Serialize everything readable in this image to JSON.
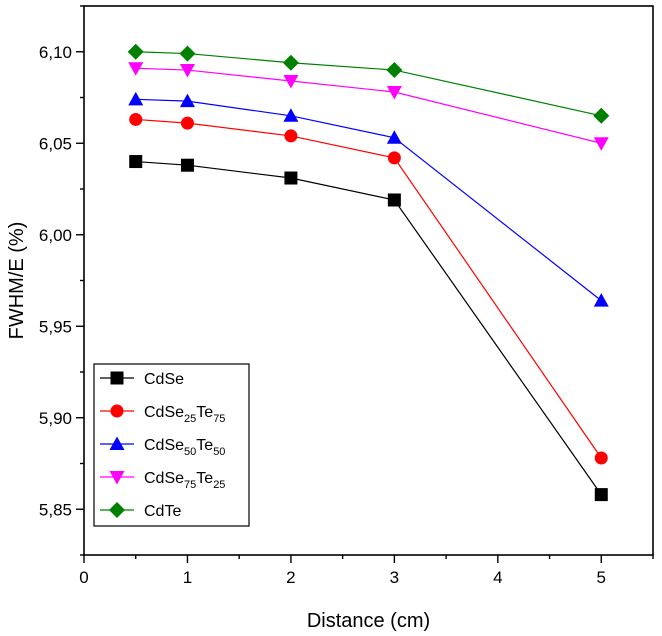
{
  "chart_data": {
    "type": "line",
    "title": "",
    "xlabel": "Distance (cm)",
    "ylabel": "FWHM/E (%)",
    "xlim": [
      0,
      5.5
    ],
    "ylim": [
      5.825,
      6.125
    ],
    "xticks": [
      0,
      1,
      2,
      3,
      4,
      5
    ],
    "xtick_labels": [
      "0",
      "1",
      "2",
      "3",
      "4",
      "5"
    ],
    "yticks": [
      5.85,
      5.9,
      5.95,
      6.0,
      6.05,
      6.1
    ],
    "ytick_labels": [
      "5,85",
      "5,90",
      "5,95",
      "6,00",
      "6,05",
      "6,10"
    ],
    "grid": false,
    "legend_position": "bottom-left",
    "x": [
      0.5,
      1,
      2,
      3,
      5
    ],
    "series": [
      {
        "name": "CdSe",
        "name_parts": [
          {
            "t": "CdSe"
          }
        ],
        "color": "#000000",
        "marker": "square",
        "values": [
          6.04,
          6.038,
          6.031,
          6.019,
          5.858
        ]
      },
      {
        "name": "CdSe25Te75",
        "name_parts": [
          {
            "t": "CdSe"
          },
          {
            "t": "25",
            "sub": true
          },
          {
            "t": "Te"
          },
          {
            "t": "75",
            "sub": true
          }
        ],
        "color": "#ff0000",
        "marker": "circle",
        "values": [
          6.063,
          6.061,
          6.054,
          6.042,
          5.878
        ]
      },
      {
        "name": "CdSe50Te50",
        "name_parts": [
          {
            "t": "CdSe"
          },
          {
            "t": "50",
            "sub": true
          },
          {
            "t": "Te"
          },
          {
            "t": "50",
            "sub": true
          }
        ],
        "color": "#0000ff",
        "marker": "triangle-up",
        "values": [
          6.074,
          6.073,
          6.065,
          6.053,
          5.964
        ]
      },
      {
        "name": "CdSe75Te25",
        "name_parts": [
          {
            "t": "CdSe"
          },
          {
            "t": "75",
            "sub": true
          },
          {
            "t": "Te"
          },
          {
            "t": "25",
            "sub": true
          }
        ],
        "color": "#ff00ff",
        "marker": "triangle-down",
        "values": [
          6.091,
          6.09,
          6.084,
          6.078,
          6.05
        ]
      },
      {
        "name": "CdTe",
        "name_parts": [
          {
            "t": "CdTe"
          }
        ],
        "color": "#008000",
        "marker": "diamond",
        "values": [
          6.1,
          6.099,
          6.094,
          6.09,
          6.065
        ]
      }
    ]
  }
}
